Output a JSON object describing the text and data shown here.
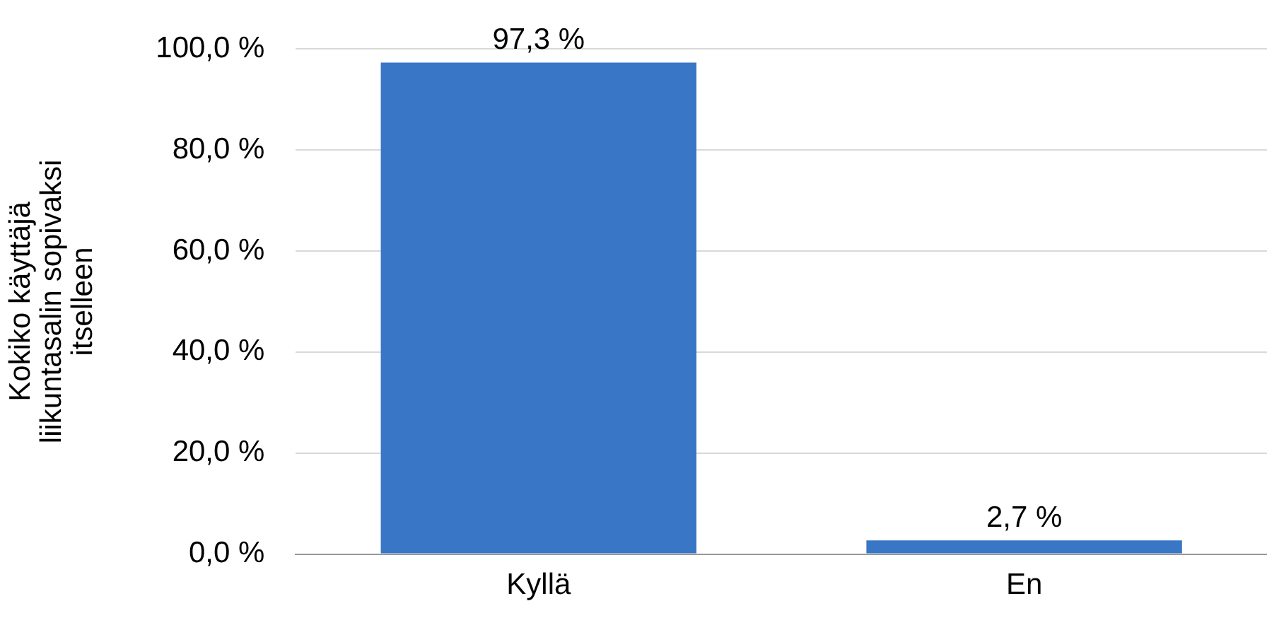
{
  "chart_data": {
    "type": "bar",
    "ylabel": "Kokiko käyttäjä\nliikuntasalin sopivaksi\nitselleen",
    "categories": [
      "Kyllä",
      "En"
    ],
    "values": [
      97.3,
      2.7
    ],
    "color": "#3a76c6",
    "value_labels": [
      "97,3 %",
      "2,7 %"
    ],
    "ylim": [
      0,
      100
    ],
    "yticks": [
      {
        "value": 0,
        "label": "0,0 %"
      },
      {
        "value": 20,
        "label": "20,0 %"
      },
      {
        "value": 40,
        "label": "40,0 %"
      },
      {
        "value": 60,
        "label": "60,0 %"
      },
      {
        "value": 80,
        "label": "80,0 %"
      },
      {
        "value": 100,
        "label": "100,0 %"
      }
    ],
    "grid": "y"
  }
}
